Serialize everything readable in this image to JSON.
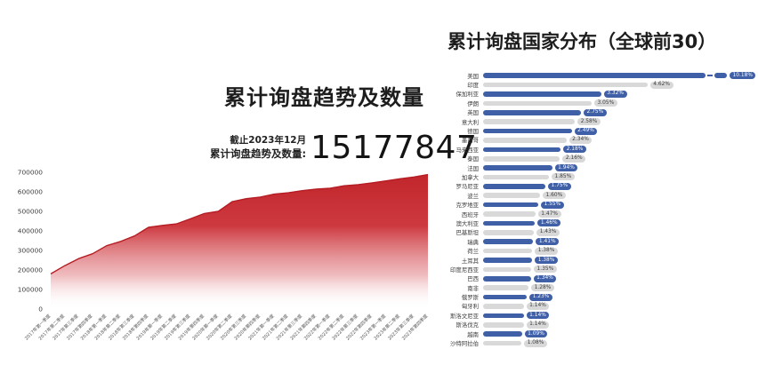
{
  "page": {
    "background": "#ffffff"
  },
  "left_chart": {
    "title": "累计询盘趋势及数量",
    "as_of": "截止2023年12月",
    "total_label": "累计询盘趋势及数量:",
    "total_value": "15177847",
    "area_color": "#c1262c",
    "area_line_color": "#b51d23"
  },
  "right_chart": {
    "title": "累计询盘国家分布（全球前30）",
    "bar_color_primary": "#3f5fa7",
    "bar_color_secondary": "#d9d9d9",
    "badge_color_primary": "#3f5fa7",
    "badge_color_secondary": "#d8d8d8"
  },
  "chart_data": [
    {
      "type": "area",
      "title": "累计询盘趋势及数量",
      "annotation": "截止2023年12月 累计询盘趋势及数量: 15177847",
      "xlabel": "",
      "ylabel": "",
      "ylim": [
        0,
        700000
      ],
      "yticks": [
        0,
        100000,
        200000,
        300000,
        400000,
        500000,
        600000,
        700000
      ],
      "grid": false,
      "legend": "none",
      "categories": [
        "2017年第一季度",
        "2017年第二季度",
        "2017年第三季度",
        "2017年第四季度",
        "2018年第一季度",
        "2018年第二季度",
        "2018年第三季度",
        "2018年第四季度",
        "2019年第一季度",
        "2019年第二季度",
        "2019年第三季度",
        "2019年第四季度",
        "2020年第一季度",
        "2020年第二季度",
        "2020年第三季度",
        "2020年第四季度",
        "2021年第一季度",
        "2021年第二季度",
        "2021年第三季度",
        "2021年第四季度",
        "2022年第一季度",
        "2022年第二季度",
        "2022年第三季度",
        "2022年第四季度",
        "2023年第一季度",
        "2023年第二季度",
        "2023年第三季度",
        "2023年第四季度"
      ],
      "values": [
        180000,
        222000,
        258000,
        283000,
        324000,
        346000,
        374000,
        418000,
        428000,
        436000,
        462000,
        489000,
        500000,
        550000,
        565000,
        573000,
        588000,
        595000,
        606000,
        614000,
        618000,
        631000,
        637000,
        646000,
        656000,
        667000,
        676000,
        688000
      ]
    },
    {
      "type": "bar",
      "orientation": "horizontal",
      "title": "累计询盘国家分布（全球前30）",
      "xlabel": "",
      "ylabel": "",
      "grid": false,
      "legend": "none",
      "sort": "descending",
      "first_bar_truncated": true,
      "categories": [
        "美国",
        "印度",
        "保加利亚",
        "伊朗",
        "英国",
        "意大利",
        "德国",
        "墨西哥",
        "马来西亚",
        "泰国",
        "法国",
        "加拿大",
        "罗马尼亚",
        "波兰",
        "克罗地亚",
        "西班牙",
        "澳大利亚",
        "巴基斯坦",
        "瑞典",
        "荷兰",
        "土耳其",
        "印度尼西亚",
        "巴西",
        "南非",
        "俄罗斯",
        "匈牙利",
        "斯洛文尼亚",
        "斯洛伐克",
        "越南",
        "沙特阿拉伯"
      ],
      "values": [
        10.18,
        4.62,
        3.32,
        3.05,
        2.75,
        2.58,
        2.49,
        2.34,
        2.18,
        2.16,
        1.94,
        1.85,
        1.75,
        1.6,
        1.55,
        1.47,
        1.46,
        1.43,
        1.41,
        1.38,
        1.38,
        1.35,
        1.34,
        1.28,
        1.23,
        1.14,
        1.14,
        1.14,
        1.09,
        1.08
      ],
      "value_labels": [
        "10.18%",
        "4.62%",
        "3.32%",
        "3.05%",
        "2.75%",
        "2.58%",
        "2.49%",
        "2.34%",
        "2.18%",
        "2.16%",
        "1.94%",
        "1.85%",
        "1.75%",
        "1.60%",
        "1.55%",
        "1.47%",
        "1.46%",
        "1.43%",
        "1.41%",
        "1.38%",
        "1.38%",
        "1.35%",
        "1.34%",
        "1.28%",
        "1.23%",
        "1.14%",
        "1.14%",
        "1.14%",
        "1.09%",
        "1.08%"
      ]
    }
  ]
}
